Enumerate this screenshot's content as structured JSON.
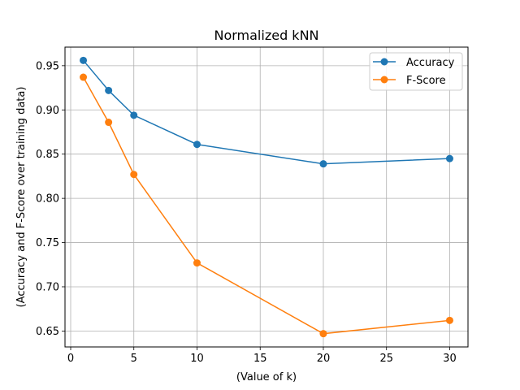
{
  "chart_data": {
    "type": "line",
    "title": "Normalized kNN",
    "xlabel": "(Value of k)",
    "ylabel": "(Accuracy and F-Score over training data)",
    "x": [
      1,
      3,
      5,
      10,
      20,
      30
    ],
    "xlim": [
      -0.45,
      31.45
    ],
    "ylim": [
      0.632,
      0.971
    ],
    "xticks": [
      0,
      5,
      10,
      15,
      20,
      25,
      30
    ],
    "yticks": [
      0.65,
      0.7,
      0.75,
      0.8,
      0.85,
      0.9,
      0.95
    ],
    "grid": true,
    "legend_position": "top-right",
    "series": [
      {
        "name": "Accuracy",
        "color": "#1f77b4",
        "marker": "circle",
        "values": [
          0.956,
          0.922,
          0.894,
          0.861,
          0.839,
          0.845
        ]
      },
      {
        "name": "F-Score",
        "color": "#ff7f0e",
        "marker": "circle",
        "values": [
          0.937,
          0.886,
          0.827,
          0.727,
          0.647,
          0.662
        ]
      }
    ]
  }
}
